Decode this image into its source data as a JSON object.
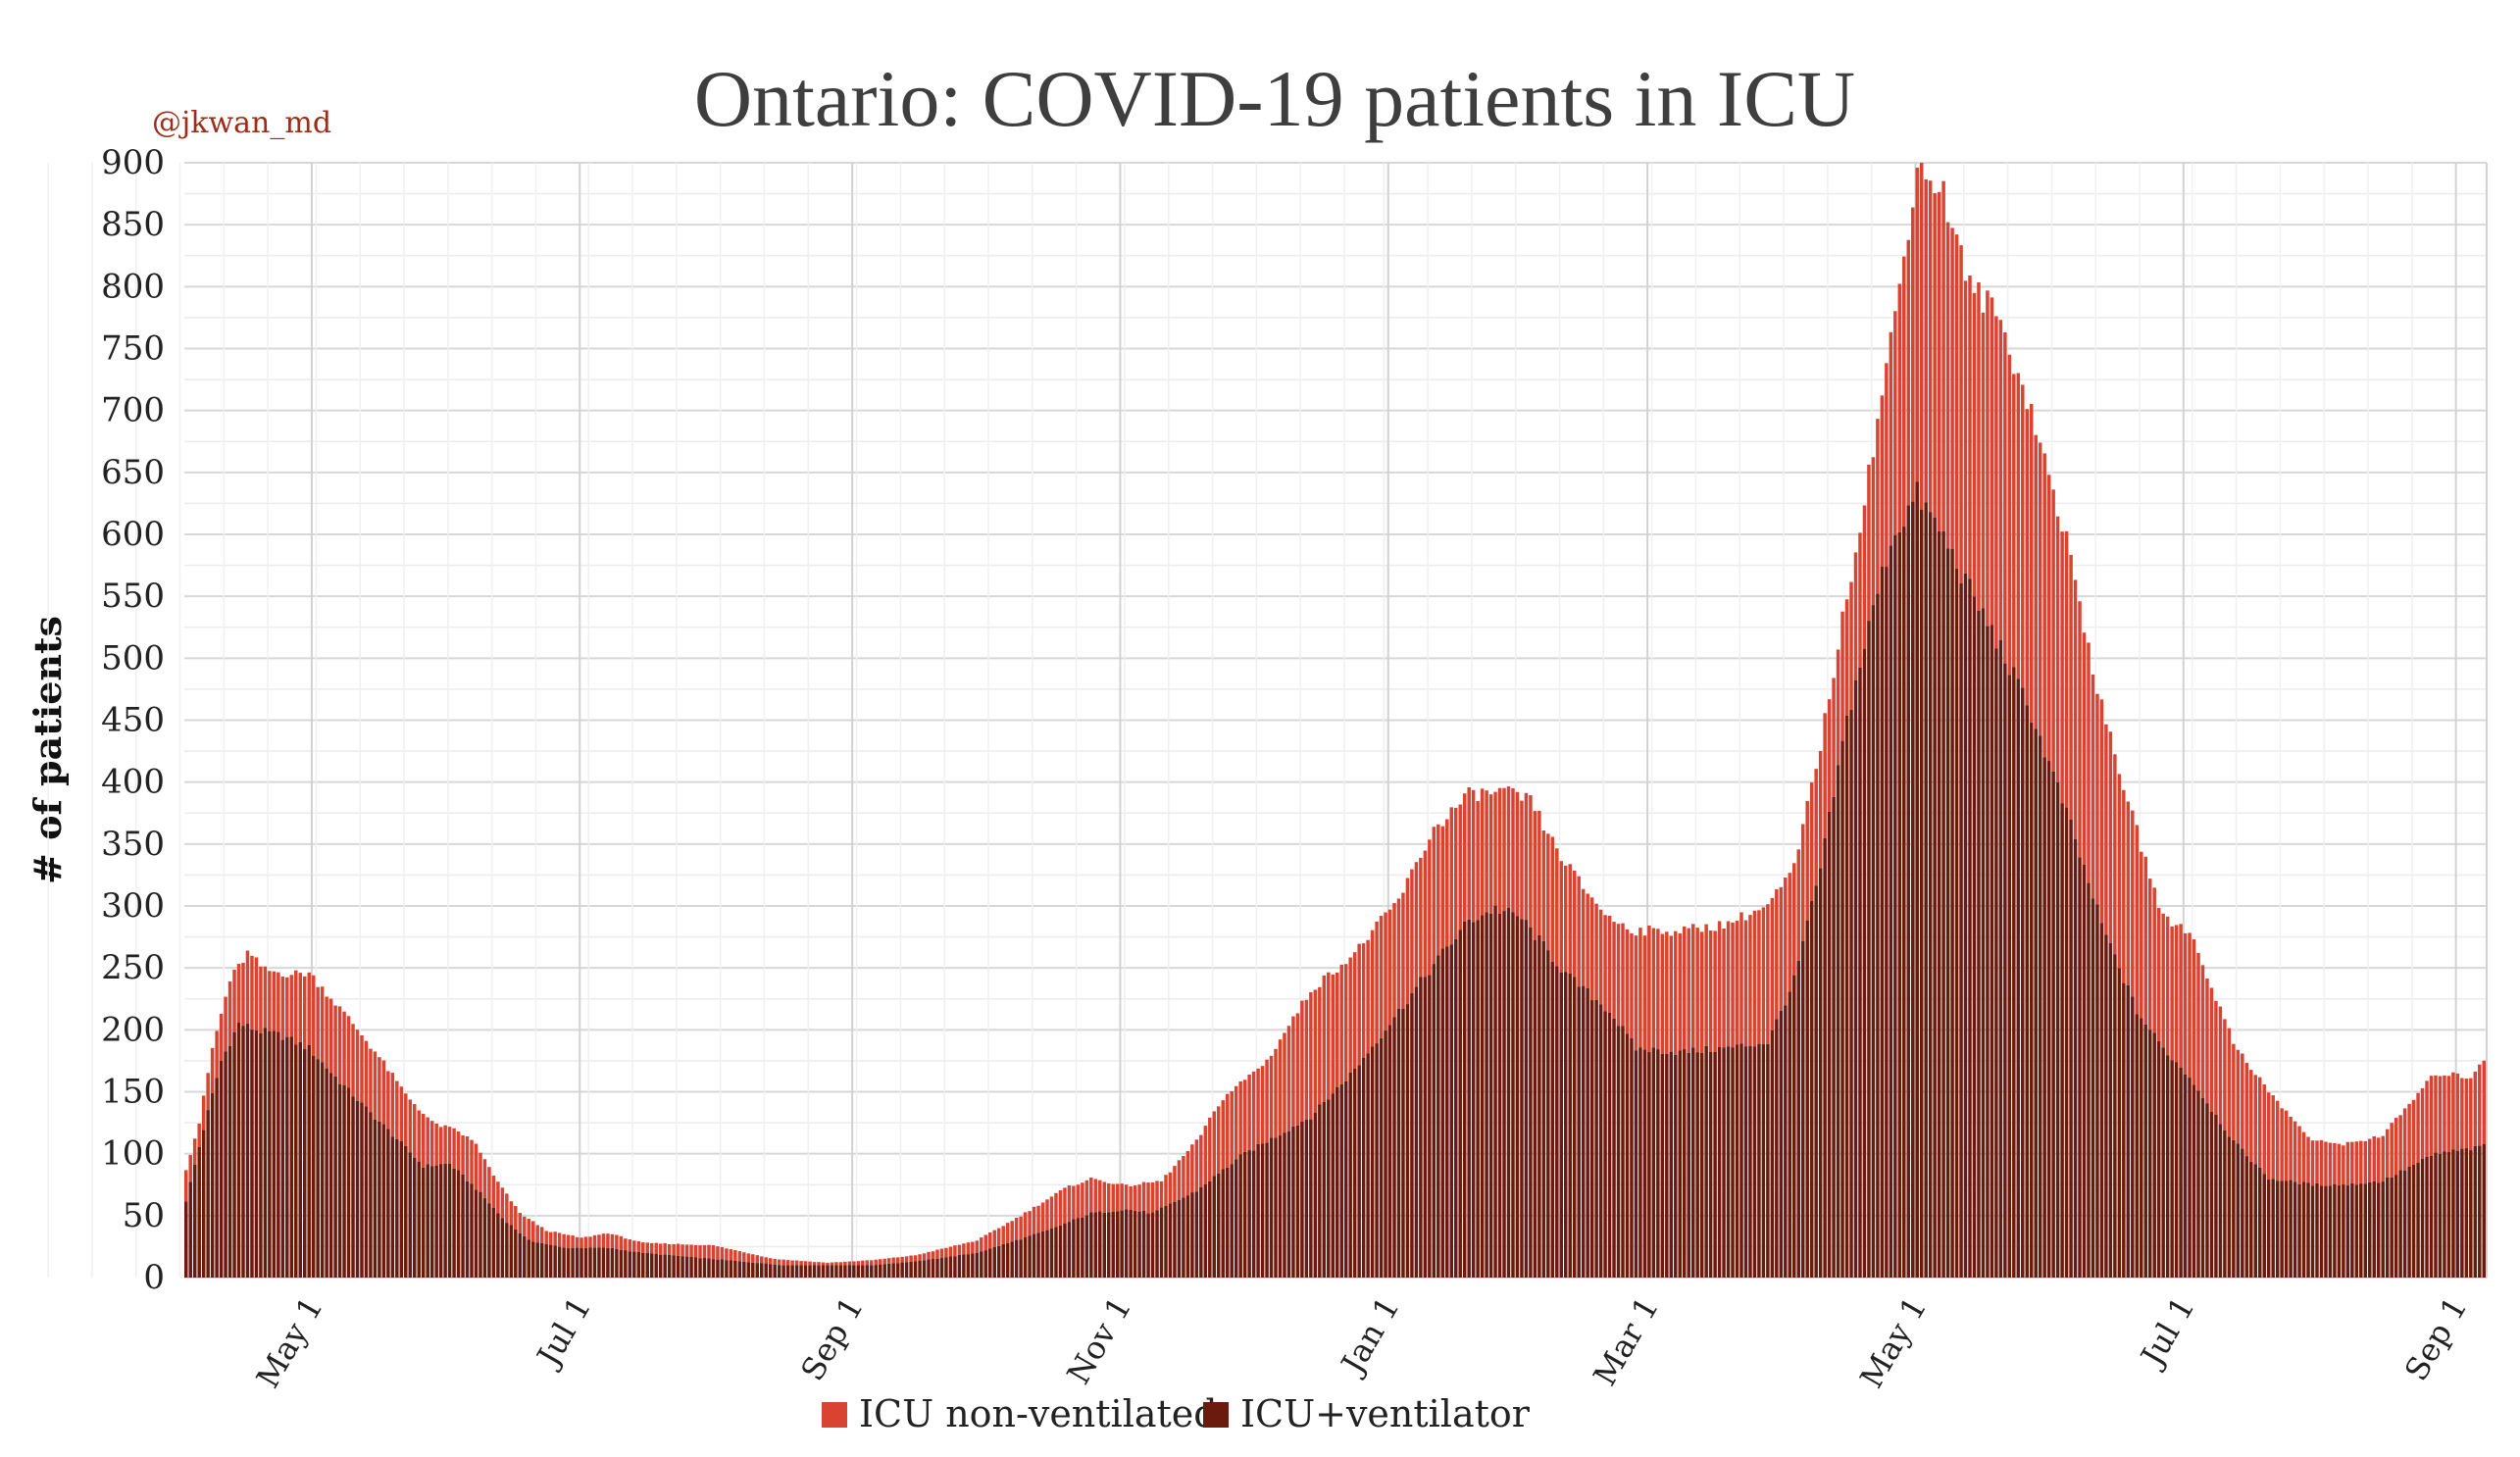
{
  "chart_data": {
    "type": "bar",
    "stacked": true,
    "title": "Ontario: COVID-19 patients in ICU",
    "credit": "@jkwan_md",
    "ylabel": "# of patients",
    "xlabel": "",
    "ylim": [
      0,
      900
    ],
    "y_ticks": [
      0,
      50,
      100,
      150,
      200,
      250,
      300,
      350,
      400,
      450,
      500,
      550,
      600,
      650,
      700,
      750,
      800,
      850,
      900
    ],
    "y_tick_labels": [
      "0",
      "50",
      "100",
      "150",
      "200",
      "250",
      "300",
      "350",
      "400",
      "450",
      "500",
      "550",
      "600",
      "650",
      "700",
      "750",
      "800",
      "850",
      "900"
    ],
    "x_start": "2020-04-02",
    "x_end": "2021-09-07",
    "x_ticks": [
      {
        "label": "May 1",
        "day": 29
      },
      {
        "label": "Jul 1",
        "day": 90
      },
      {
        "label": "Sep 1",
        "day": 152
      },
      {
        "label": "Nov 1",
        "day": 213
      },
      {
        "label": "Jan 1",
        "day": 274
      },
      {
        "label": "Mar 1",
        "day": 333
      },
      {
        "label": "May 1",
        "day": 394
      },
      {
        "label": "Jul 1",
        "day": 455
      },
      {
        "label": "Sep 1",
        "day": 517
      }
    ],
    "series": [
      {
        "name": "ICU+ventilator",
        "color": "#6b1a0e",
        "keyframes": [
          [
            0,
            62
          ],
          [
            4,
            120
          ],
          [
            8,
            175
          ],
          [
            12,
            205
          ],
          [
            16,
            200
          ],
          [
            22,
            195
          ],
          [
            28,
            185
          ],
          [
            34,
            162
          ],
          [
            40,
            140
          ],
          [
            48,
            112
          ],
          [
            54,
            90
          ],
          [
            60,
            92
          ],
          [
            66,
            72
          ],
          [
            72,
            48
          ],
          [
            78,
            30
          ],
          [
            86,
            24
          ],
          [
            96,
            24
          ],
          [
            104,
            20
          ],
          [
            120,
            15
          ],
          [
            136,
            10
          ],
          [
            146,
            10
          ],
          [
            156,
            10
          ],
          [
            166,
            13
          ],
          [
            180,
            20
          ],
          [
            196,
            38
          ],
          [
            206,
            52
          ],
          [
            214,
            55
          ],
          [
            220,
            52
          ],
          [
            230,
            70
          ],
          [
            240,
            98
          ],
          [
            256,
            130
          ],
          [
            266,
            168
          ],
          [
            276,
            215
          ],
          [
            286,
            262
          ],
          [
            292,
            288
          ],
          [
            298,
            298
          ],
          [
            304,
            290
          ],
          [
            314,
            245
          ],
          [
            324,
            215
          ],
          [
            330,
            185
          ],
          [
            340,
            182
          ],
          [
            350,
            185
          ],
          [
            360,
            190
          ],
          [
            366,
            240
          ],
          [
            372,
            330
          ],
          [
            378,
            450
          ],
          [
            384,
            540
          ],
          [
            388,
            595
          ],
          [
            394,
            632
          ],
          [
            400,
            598
          ],
          [
            406,
            555
          ],
          [
            412,
            515
          ],
          [
            420,
            455
          ],
          [
            428,
            375
          ],
          [
            436,
            285
          ],
          [
            444,
            215
          ],
          [
            450,
            185
          ],
          [
            456,
            162
          ],
          [
            466,
            110
          ],
          [
            474,
            80
          ],
          [
            484,
            75
          ],
          [
            492,
            75
          ],
          [
            500,
            78
          ],
          [
            512,
            100
          ],
          [
            522,
            105
          ],
          [
            526,
            115
          ]
        ]
      },
      {
        "name": "ICU non-ventilated",
        "color": "#d94432",
        "keyframes": [
          [
            0,
            88
          ],
          [
            3,
            125
          ],
          [
            6,
            185
          ],
          [
            10,
            240
          ],
          [
            14,
            262
          ],
          [
            18,
            248
          ],
          [
            24,
            245
          ],
          [
            28,
            246
          ],
          [
            32,
            230
          ],
          [
            38,
            205
          ],
          [
            44,
            178
          ],
          [
            50,
            148
          ],
          [
            56,
            125
          ],
          [
            62,
            118
          ],
          [
            66,
            108
          ],
          [
            70,
            82
          ],
          [
            76,
            52
          ],
          [
            82,
            38
          ],
          [
            90,
            32
          ],
          [
            96,
            36
          ],
          [
            104,
            28
          ],
          [
            120,
            26
          ],
          [
            134,
            15
          ],
          [
            146,
            12
          ],
          [
            156,
            14
          ],
          [
            166,
            18
          ],
          [
            180,
            30
          ],
          [
            190,
            50
          ],
          [
            200,
            72
          ],
          [
            206,
            80
          ],
          [
            214,
            74
          ],
          [
            222,
            78
          ],
          [
            230,
            110
          ],
          [
            236,
            145
          ],
          [
            246,
            175
          ],
          [
            256,
            232
          ],
          [
            266,
            262
          ],
          [
            276,
            305
          ],
          [
            284,
            362
          ],
          [
            292,
            390
          ],
          [
            300,
            392
          ],
          [
            306,
            385
          ],
          [
            312,
            345
          ],
          [
            318,
            315
          ],
          [
            324,
            290
          ],
          [
            330,
            280
          ],
          [
            340,
            280
          ],
          [
            350,
            285
          ],
          [
            360,
            300
          ],
          [
            366,
            330
          ],
          [
            372,
            430
          ],
          [
            378,
            550
          ],
          [
            384,
            670
          ],
          [
            390,
            800
          ],
          [
            394,
            900
          ],
          [
            400,
            875
          ],
          [
            406,
            800
          ],
          [
            412,
            780
          ],
          [
            420,
            700
          ],
          [
            428,
            595
          ],
          [
            436,
            460
          ],
          [
            444,
            360
          ],
          [
            450,
            290
          ],
          [
            456,
            280
          ],
          [
            466,
            190
          ],
          [
            474,
            150
          ],
          [
            484,
            110
          ],
          [
            492,
            108
          ],
          [
            500,
            115
          ],
          [
            512,
            165
          ],
          [
            520,
            162
          ],
          [
            526,
            192
          ]
        ]
      }
    ],
    "legend": {
      "position": "bottom-center",
      "entries": [
        {
          "label": "ICU non-ventilated",
          "color": "#d94432"
        },
        {
          "label": "ICU+ventilator",
          "color": "#6b1a0e"
        }
      ]
    }
  }
}
